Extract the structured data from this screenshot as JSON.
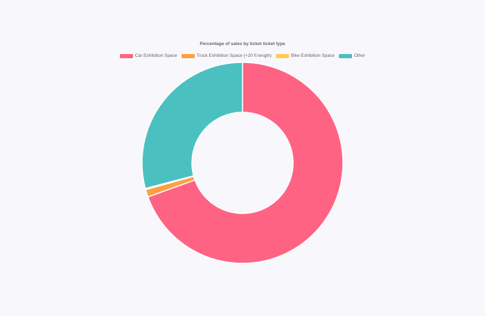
{
  "chart_data": {
    "type": "pie",
    "variant": "doughnut",
    "title": "Percentage of sales by ticket ticket type",
    "legend_position": "top",
    "series": [
      {
        "name": "Car Exhibition Space",
        "value": 69.5,
        "color": "#ff6384"
      },
      {
        "name": "Truck Exhibition Space (+20 ft length)",
        "value": 1.2,
        "color": "#ff9f40"
      },
      {
        "name": "Bike Exhibition Space",
        "value": 0.2,
        "color": "#ffcd56"
      },
      {
        "name": "Other",
        "value": 29.1,
        "color": "#4bc0c0"
      }
    ]
  }
}
